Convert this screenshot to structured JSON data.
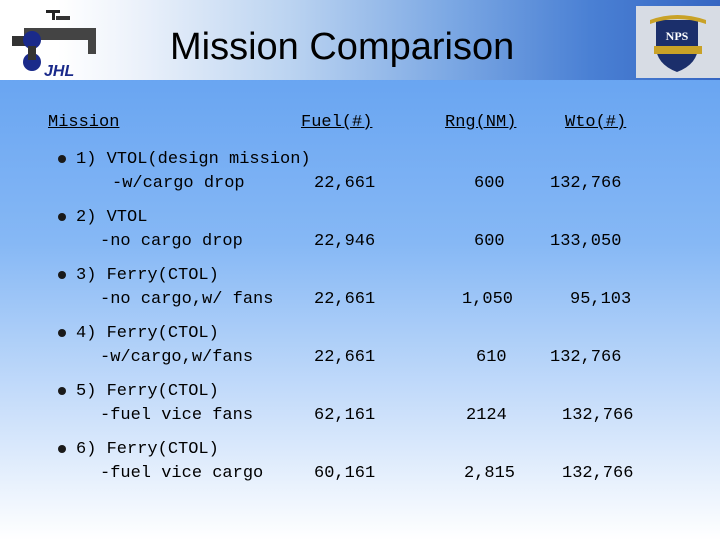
{
  "header": {
    "title": "Mission Comparison",
    "logo_left_text": "JHL",
    "logo_right_text": "NPS"
  },
  "columns": {
    "mission": "Mission",
    "fuel": "Fuel(#)",
    "range": "Rng(NM)",
    "wto": "Wto(#)"
  },
  "rows": [
    {
      "line1": "1) VTOL(design mission)",
      "line2": "-w/cargo drop",
      "fuel": "22,661",
      "range": "600",
      "wto": "132,766"
    },
    {
      "line1": "2) VTOL",
      "line2": "-no cargo drop",
      "fuel": "22,946",
      "range": "600",
      "wto": "133,050"
    },
    {
      "line1": "3) Ferry(CTOL)",
      "line2": "-no cargo,w/ fans",
      "fuel": "22,661",
      "range": "1,050",
      "wto": "95,103"
    },
    {
      "line1": "4) Ferry(CTOL)",
      "line2": "-w/cargo,w/fans",
      "fuel": "22,661",
      "range": "610",
      "wto": "132,766"
    },
    {
      "line1": "5) Ferry(CTOL)",
      "line2": "-fuel vice fans",
      "fuel": "62,161",
      "range": "2124",
      "wto": "132,766"
    },
    {
      "line1": "6) Ferry(CTOL)",
      "line2": "-fuel vice cargo",
      "fuel": "60,161",
      "range": "2,815",
      "wto": "132,766"
    }
  ],
  "colors": {
    "background_top": "#5b9cf0",
    "background_bottom": "#ffffff",
    "text": "#000000"
  }
}
